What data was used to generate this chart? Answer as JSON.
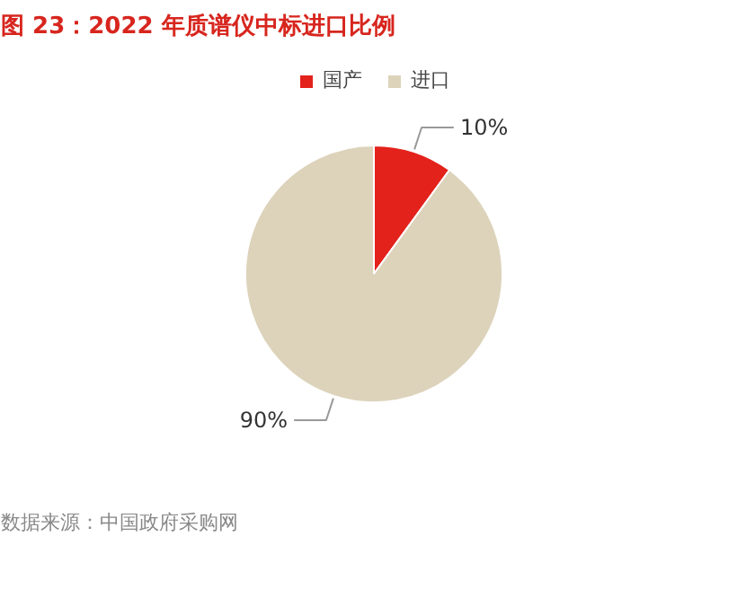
{
  "chart_data": {
    "type": "pie",
    "title": "图 23：2022 年质谱仪中标进口比例",
    "categories": [
      "国产",
      "进口"
    ],
    "values": [
      10,
      90
    ],
    "colors": [
      "#e3221c",
      "#ddd3bb"
    ],
    "value_labels": [
      "10%",
      "90%"
    ],
    "legend": "top",
    "annotations": [
      "数据来源：中国政府采购网"
    ]
  }
}
